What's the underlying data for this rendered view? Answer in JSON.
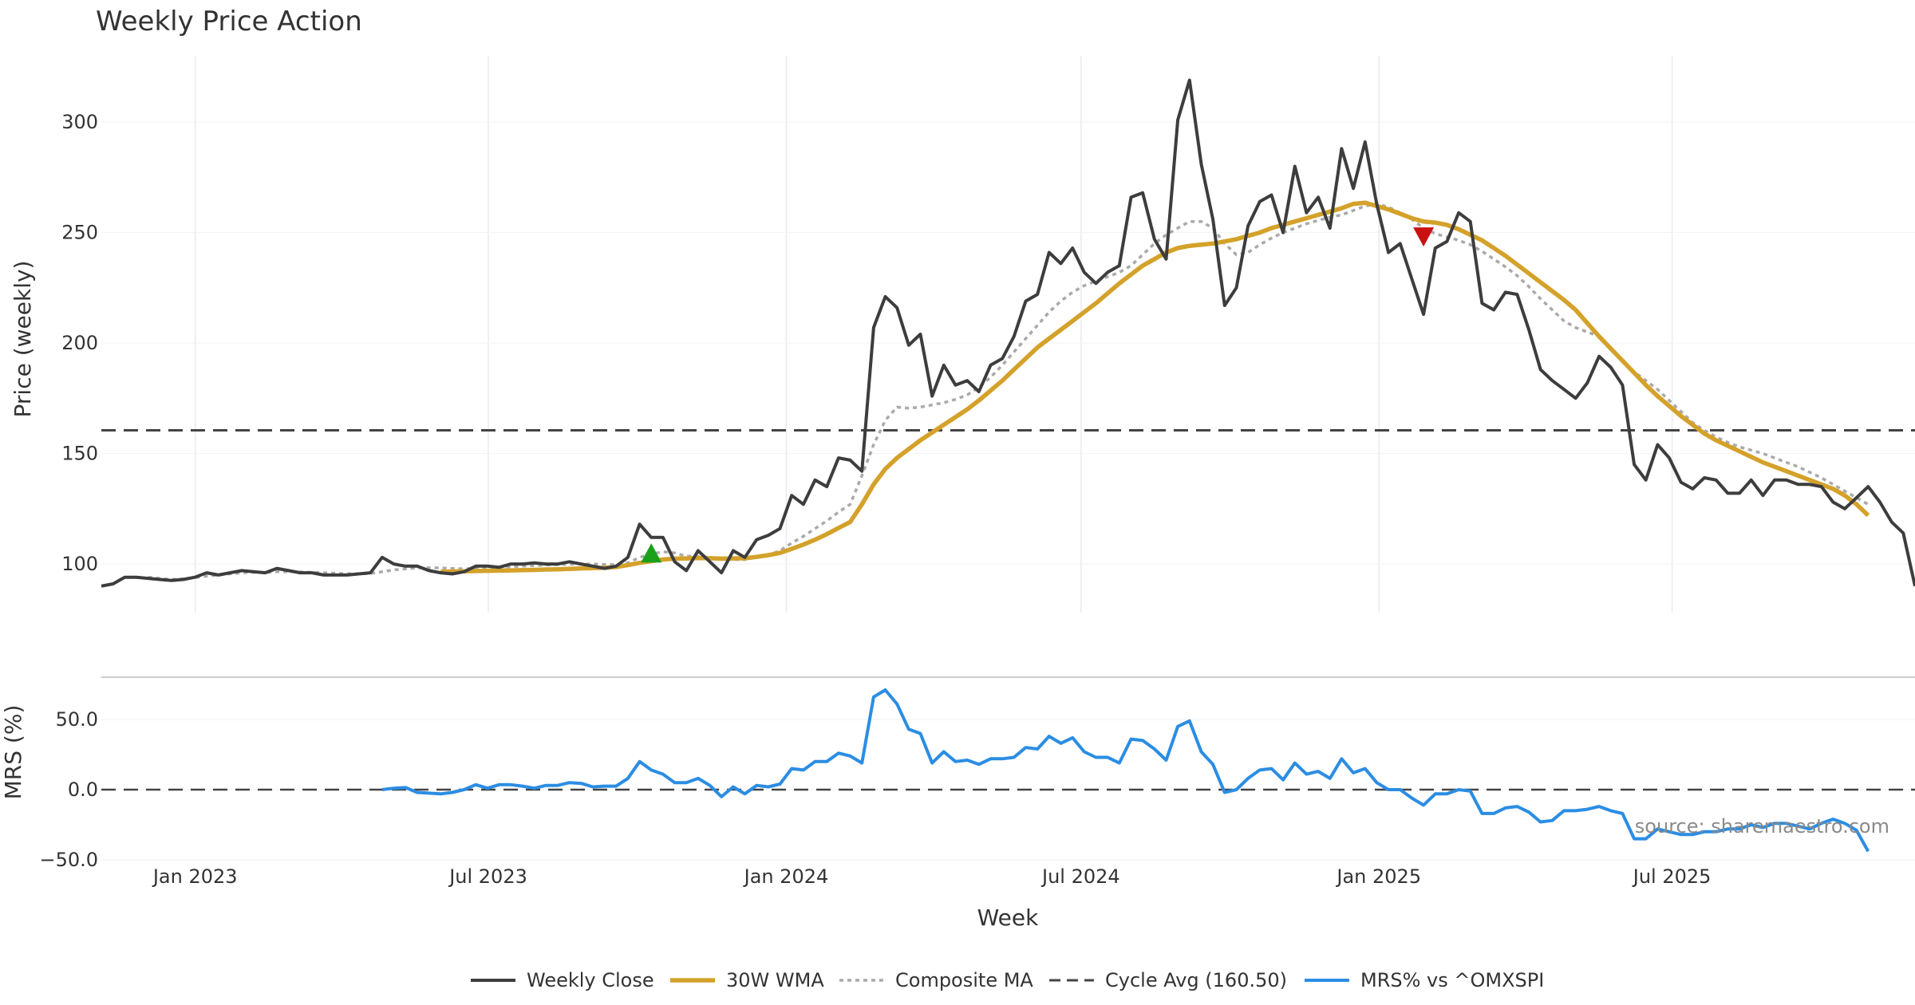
{
  "chart_data": {
    "type": "line",
    "title": "Weekly Price Action",
    "xlabel": "Week",
    "x_ticks": [
      "Jan 2023",
      "Jul 2023",
      "Jan 2024",
      "Jul 2024",
      "Jan 2025",
      "Jul 2025"
    ],
    "x_start": "2022-11-04",
    "x_end": "2025-11-28",
    "source": "source: sharemaestro.com",
    "colors": {
      "close": "#3d3d3d",
      "wma": "#d4a12a",
      "composite": "#aaaaaa",
      "cycle": "#444444",
      "mrs": "#2b8de3",
      "buy": "#1aa01a",
      "sell": "#cc1111"
    },
    "price_panel": {
      "ylabel": "Price (weekly)",
      "ylim": [
        78,
        330
      ],
      "y_ticks": [
        100,
        150,
        200,
        250,
        300
      ],
      "cycle_avg": 160.5,
      "series": {
        "close": [
          90,
          91,
          94,
          94,
          93.5,
          93,
          92.5,
          93,
          94,
          96,
          95,
          96,
          97,
          96.5,
          96,
          98,
          97,
          96,
          96,
          95,
          95,
          95,
          95.5,
          96,
          103,
          100,
          99,
          99,
          97,
          96,
          95.5,
          96.5,
          99,
          99,
          98.5,
          100,
          100,
          100.5,
          100,
          100,
          101,
          100,
          99,
          98,
          99,
          103,
          118,
          112,
          112,
          101,
          97,
          106,
          101,
          96,
          106,
          103,
          111,
          113,
          116,
          131,
          127,
          138,
          135,
          148,
          147,
          142,
          207,
          221,
          216,
          199,
          204,
          176,
          190,
          181,
          183,
          178,
          190,
          193,
          203,
          219,
          222,
          241,
          236,
          243,
          232,
          227,
          232,
          235,
          266,
          268,
          247,
          238,
          301,
          319,
          281,
          256,
          217,
          225,
          253,
          264,
          267,
          250,
          280,
          259,
          266,
          252,
          288,
          270,
          291,
          263,
          241,
          245,
          229,
          213,
          243,
          246,
          259,
          255,
          218,
          215,
          223,
          222,
          206,
          188,
          183,
          179,
          175,
          182,
          194,
          189,
          181,
          145,
          138,
          154,
          148,
          137,
          134,
          139,
          138,
          132,
          132,
          138,
          131,
          138,
          138,
          136,
          136,
          135,
          128,
          125,
          130,
          135,
          128,
          119,
          114,
          90
        ],
        "wma": [
          null,
          null,
          null,
          null,
          null,
          null,
          null,
          null,
          null,
          null,
          null,
          null,
          null,
          null,
          null,
          null,
          null,
          null,
          null,
          null,
          null,
          null,
          null,
          null,
          null,
          null,
          null,
          null,
          null,
          96.5,
          96.6,
          96.7,
          96.8,
          96.9,
          97,
          97.1,
          97.2,
          97.3,
          97.5,
          97.6,
          97.8,
          98,
          98.1,
          98.3,
          98.6,
          99.5,
          100.5,
          101.3,
          102,
          102.4,
          102.5,
          102.7,
          102.6,
          102.4,
          102.5,
          102.6,
          103.2,
          104,
          105,
          106.8,
          108.8,
          111,
          113.5,
          116.3,
          119,
          127,
          136,
          143,
          148,
          152,
          156,
          159.5,
          163,
          166.5,
          170,
          174,
          178.5,
          183,
          188,
          193,
          198,
          202,
          206,
          210,
          214,
          218,
          222.5,
          227,
          231,
          235,
          238,
          241,
          243,
          244,
          244.5,
          245,
          246,
          247,
          248.5,
          250,
          252,
          253.5,
          255,
          256.5,
          258,
          259.5,
          261,
          263,
          263.5,
          262,
          260.5,
          258.5,
          256.5,
          255,
          254.5,
          253.5,
          251.5,
          249,
          246.5,
          243,
          239.5,
          235.5,
          231.5,
          227.5,
          223.5,
          219.5,
          215,
          209,
          203,
          197.5,
          192,
          186.5,
          181,
          176,
          171.5,
          167,
          163,
          159,
          156,
          153.5,
          151,
          148.5,
          146,
          144,
          142,
          140,
          138,
          136,
          134,
          131,
          127,
          122
        ],
        "composite": [
          null,
          null,
          null,
          null,
          94,
          93.5,
          93,
          93.3,
          93.8,
          94.5,
          95,
          95.5,
          96,
          96.2,
          96.2,
          96.5,
          96.5,
          96.4,
          96.2,
          96,
          95.8,
          95.6,
          95.6,
          95.7,
          96.5,
          97.3,
          97.8,
          98.2,
          98.3,
          98.2,
          98,
          97.8,
          98,
          98.3,
          98.5,
          98.8,
          99,
          99.3,
          99.5,
          99.7,
          99.9,
          100,
          100,
          99.8,
          99.7,
          100.5,
          103,
          104.5,
          105.5,
          105,
          103.5,
          103.5,
          103,
          102,
          102,
          102,
          103,
          104,
          106,
          109.5,
          112.5,
          116,
          119.5,
          123.5,
          127,
          140,
          154,
          165,
          171,
          170.5,
          171,
          172,
          173,
          174.5,
          176.5,
          180,
          184.5,
          190,
          196,
          202,
          208,
          214,
          219,
          223,
          226,
          228,
          230,
          232,
          235,
          240,
          245,
          249,
          252,
          255,
          255,
          252,
          245,
          240,
          241,
          244.5,
          247.5,
          250,
          252,
          254,
          255.5,
          257,
          258,
          260,
          262,
          263,
          261.5,
          259,
          256,
          252,
          249.5,
          248,
          246.5,
          244.5,
          241.5,
          238,
          234.5,
          230.5,
          225.5,
          220,
          215,
          210,
          207,
          205,
          203,
          198,
          192,
          187,
          183,
          179,
          174,
          169,
          164,
          160.5,
          157.5,
          155,
          153,
          151.5,
          150,
          148,
          146,
          144,
          141.5,
          139,
          136,
          133,
          130,
          127
        ]
      }
    },
    "markers": [
      {
        "type": "buy",
        "week": 47,
        "value": 105
      },
      {
        "type": "sell",
        "week": 113,
        "value": 248
      }
    ],
    "mrs_panel": {
      "ylabel": "MRS (%)",
      "ylim": [
        -50,
        75
      ],
      "y_ticks": [
        "50.0",
        "0.0",
        "−50.0"
      ],
      "y_tick_values": [
        50,
        0,
        -50
      ],
      "values": [
        null,
        null,
        null,
        null,
        null,
        null,
        null,
        null,
        null,
        null,
        null,
        null,
        null,
        null,
        null,
        null,
        null,
        null,
        null,
        null,
        null,
        null,
        null,
        null,
        0,
        1,
        1.5,
        -2,
        -2.5,
        -3,
        -2,
        0,
        3.5,
        1,
        3.5,
        3.5,
        2.5,
        1,
        3,
        3,
        5,
        4.5,
        2,
        2.5,
        2.5,
        8,
        20,
        14,
        11,
        5,
        5,
        8,
        3,
        -5,
        2,
        -3,
        3,
        2,
        4,
        15,
        14,
        20,
        20,
        26,
        24,
        19,
        66,
        71,
        61,
        43,
        40,
        19,
        27,
        20,
        21,
        18,
        22,
        22,
        23,
        30,
        29,
        38,
        33,
        37,
        27,
        23,
        23,
        19,
        36,
        35,
        29,
        21,
        45,
        49,
        27,
        18,
        -2,
        0,
        8,
        14,
        15,
        7,
        19,
        11,
        13,
        8,
        22,
        12,
        15,
        5,
        0,
        0,
        -6,
        -11,
        -3,
        -3,
        0,
        -1,
        -17,
        -17,
        -13,
        -12,
        -16,
        -23,
        -22,
        -15,
        -15,
        -14,
        -12,
        -15,
        -17,
        -35,
        -35,
        -28,
        -30,
        -32,
        -32,
        -30,
        -30,
        -28,
        -28,
        -25,
        -27,
        -24,
        -24,
        -26,
        -28,
        -24,
        -21,
        -24,
        -29,
        -44
      ]
    },
    "legend": {
      "placement": "bottom-center",
      "items": [
        {
          "key": "close",
          "label": "Weekly Close"
        },
        {
          "key": "wma",
          "label": "30W WMA"
        },
        {
          "key": "composite",
          "label": "Composite MA"
        },
        {
          "key": "cycle",
          "label": "Cycle Avg (160.50)"
        },
        {
          "key": "mrs",
          "label": "MRS% vs ^OMXSPI"
        }
      ]
    },
    "grid": true
  }
}
